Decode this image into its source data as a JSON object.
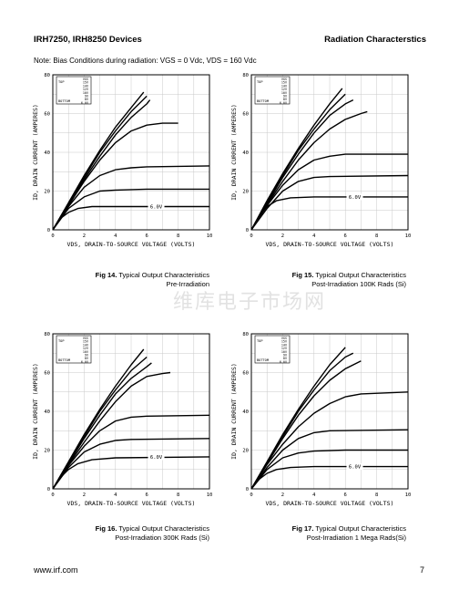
{
  "header": {
    "left": "IRH7250, IRH8250 Devices",
    "right": "Radiation Characterstics"
  },
  "note": "Note: Bias Conditions during radiation: VGS = 0 Vdc, VDS = 160 Vdc",
  "watermark": "维库电子市场网",
  "footer": {
    "url": "www.irf.com",
    "page": "7"
  },
  "charts": [
    {
      "fig": "Fig 14.",
      "caption_line1": "Typical Output Characteristics",
      "caption_line2": "Pre-Irradiation",
      "ylabel": "ID, DRAIN CURRENT (AMPERES)",
      "xlabel": "VDS, DRAIN-TO-SOURCE VOLTAGE (VOLTS)",
      "legend_top": "TOP",
      "legend_bottom": "BOTTOM",
      "legend_values": [
        "VGS",
        "15V",
        "14V",
        "12V",
        "10V",
        "9V",
        "8V",
        "6.0V"
      ],
      "curve_label": "6.0V"
    },
    {
      "fig": "Fig 15.",
      "caption_line1": "Typical Output Characteristics",
      "caption_line2": "Post-Irradiation 100K Rads (Si)",
      "ylabel": "ID, DRAIN CURRENT (AMPERES)",
      "xlabel": "VDS, DRAIN-TO-SOURCE VOLTAGE (VOLTS)",
      "legend_top": "TOP",
      "legend_bottom": "BOTTOM",
      "legend_values": [
        "VGS",
        "15V",
        "14V",
        "12V",
        "10V",
        "9V",
        "8V",
        "6.0V"
      ],
      "curve_label": "6.0V"
    },
    {
      "fig": "Fig 16.",
      "caption_line1": "Typical Output Characteristics",
      "caption_line2": "Post-Irradiation 300K Rads (Si)",
      "ylabel": "ID, DRAIN CURRENT (AMPERES)",
      "xlabel": "VDS, DRAIN-TO-SOURCE VOLTAGE (VOLTS)",
      "legend_top": "TOP",
      "legend_bottom": "BOTTOM",
      "legend_values": [
        "VGS",
        "15V",
        "14V",
        "12V",
        "10V",
        "9V",
        "8V",
        "6.0V"
      ],
      "curve_label": "6.0V"
    },
    {
      "fig": "Fig 17.",
      "caption_line1": "Typical Output Characteristics",
      "caption_line2": "Post-Irradiation 1 Mega Rads(Si)",
      "ylabel": "ID, DRAIN CURRENT (AMPERES)",
      "xlabel": "VDS, DRAIN-TO-SOURCE VOLTAGE (VOLTS)",
      "legend_top": "TOP",
      "legend_bottom": "BOTTOM",
      "legend_values": [
        "VGS",
        "15V",
        "14V",
        "12V",
        "10V",
        "9V",
        "8V",
        "6.0V"
      ],
      "curve_label": "6.0V"
    }
  ],
  "chart_data": [
    {
      "type": "line",
      "x_ticks": [
        "0",
        "2",
        "4",
        "6",
        "8",
        "10"
      ],
      "y_ticks": [
        "0",
        "20",
        "40",
        "60",
        "80"
      ],
      "xlim": [
        0,
        10
      ],
      "ylim": [
        0,
        80
      ],
      "series": [
        {
          "name": "15V",
          "points": [
            [
              0,
              0
            ],
            [
              1,
              14
            ],
            [
              2,
              28
            ],
            [
              3,
              41
            ],
            [
              4,
              53
            ],
            [
              5,
              63
            ],
            [
              5.8,
              71
            ]
          ]
        },
        {
          "name": "14V",
          "points": [
            [
              0,
              0
            ],
            [
              1,
              13.5
            ],
            [
              2,
              27
            ],
            [
              3,
              40
            ],
            [
              4,
              51
            ],
            [
              5,
              61
            ],
            [
              6,
              69
            ]
          ]
        },
        {
          "name": "12V",
          "points": [
            [
              0,
              0
            ],
            [
              1,
              13
            ],
            [
              2,
              26
            ],
            [
              3,
              38
            ],
            [
              4,
              49
            ],
            [
              5,
              58
            ],
            [
              6,
              65
            ],
            [
              6.2,
              67
            ]
          ]
        },
        {
          "name": "10V",
          "points": [
            [
              0,
              0
            ],
            [
              1,
              12.5
            ],
            [
              2,
              25
            ],
            [
              3,
              36
            ],
            [
              4,
              45
            ],
            [
              5,
              51
            ],
            [
              6,
              54
            ],
            [
              7,
              55
            ],
            [
              8,
              55
            ]
          ]
        },
        {
          "name": "9V",
          "points": [
            [
              0,
              0
            ],
            [
              1,
              12
            ],
            [
              2,
              22
            ],
            [
              3,
              28
            ],
            [
              4,
              31
            ],
            [
              5,
              32
            ],
            [
              6,
              32.5
            ],
            [
              10,
              33
            ]
          ]
        },
        {
          "name": "8V",
          "points": [
            [
              0,
              0
            ],
            [
              1,
              11
            ],
            [
              2,
              17
            ],
            [
              3,
              20
            ],
            [
              4,
              20.5
            ],
            [
              6,
              21
            ],
            [
              10,
              21
            ]
          ]
        },
        {
          "name": "6.0V",
          "points": [
            [
              0,
              0
            ],
            [
              0.5,
              6
            ],
            [
              1,
              9
            ],
            [
              1.6,
              11
            ],
            [
              2.5,
              12
            ],
            [
              4,
              12
            ],
            [
              10,
              12
            ]
          ]
        }
      ]
    },
    {
      "type": "line",
      "x_ticks": [
        "0",
        "2",
        "4",
        "6",
        "8",
        "10"
      ],
      "y_ticks": [
        "0",
        "20",
        "40",
        "60",
        "80"
      ],
      "xlim": [
        0,
        10
      ],
      "ylim": [
        0,
        80
      ],
      "series": [
        {
          "name": "15V",
          "points": [
            [
              0,
              0
            ],
            [
              1,
              15
            ],
            [
              2,
              29
            ],
            [
              3,
              42
            ],
            [
              4,
              54
            ],
            [
              5,
              65
            ],
            [
              5.8,
              73
            ]
          ]
        },
        {
          "name": "14V",
          "points": [
            [
              0,
              0
            ],
            [
              1,
              14
            ],
            [
              2,
              28
            ],
            [
              3,
              41
            ],
            [
              4,
              52
            ],
            [
              5,
              62
            ],
            [
              6,
              70
            ]
          ]
        },
        {
          "name": "12V",
          "points": [
            [
              0,
              0
            ],
            [
              1,
              13.5
            ],
            [
              2,
              27
            ],
            [
              3,
              39
            ],
            [
              4,
              50
            ],
            [
              5,
              59
            ],
            [
              6,
              65
            ],
            [
              6.5,
              67
            ]
          ]
        },
        {
          "name": "10V",
          "points": [
            [
              0,
              0
            ],
            [
              1,
              13
            ],
            [
              2,
              25
            ],
            [
              3,
              36
            ],
            [
              4,
              45
            ],
            [
              5,
              52
            ],
            [
              6,
              57
            ],
            [
              7,
              60
            ],
            [
              7.4,
              61
            ]
          ]
        },
        {
          "name": "9V",
          "points": [
            [
              0,
              0
            ],
            [
              1,
              12.5
            ],
            [
              2,
              23
            ],
            [
              3,
              31
            ],
            [
              4,
              36
            ],
            [
              5,
              38
            ],
            [
              6,
              39
            ],
            [
              10,
              39
            ]
          ]
        },
        {
          "name": "8V",
          "points": [
            [
              0,
              0
            ],
            [
              1,
              11
            ],
            [
              2,
              20
            ],
            [
              3,
              25
            ],
            [
              4,
              27
            ],
            [
              5,
              27.5
            ],
            [
              10,
              28
            ]
          ]
        },
        {
          "name": "6.0V",
          "points": [
            [
              0,
              0
            ],
            [
              0.5,
              7
            ],
            [
              1,
              12
            ],
            [
              1.6,
              15
            ],
            [
              2.5,
              16.5
            ],
            [
              4,
              17
            ],
            [
              10,
              17
            ]
          ]
        }
      ]
    },
    {
      "type": "line",
      "x_ticks": [
        "0",
        "2",
        "4",
        "6",
        "8",
        "10"
      ],
      "y_ticks": [
        "0",
        "20",
        "40",
        "60",
        "80"
      ],
      "xlim": [
        0,
        10
      ],
      "ylim": [
        0,
        80
      ],
      "series": [
        {
          "name": "15V",
          "points": [
            [
              0,
              0
            ],
            [
              1,
              14
            ],
            [
              2,
              28
            ],
            [
              3,
              41
            ],
            [
              4,
              53
            ],
            [
              5,
              64
            ],
            [
              5.8,
              72
            ]
          ]
        },
        {
          "name": "14V",
          "points": [
            [
              0,
              0
            ],
            [
              1,
              13.5
            ],
            [
              2,
              27
            ],
            [
              3,
              40
            ],
            [
              4,
              51
            ],
            [
              5,
              61
            ],
            [
              6,
              68
            ]
          ]
        },
        {
          "name": "12V",
          "points": [
            [
              0,
              0
            ],
            [
              1,
              13
            ],
            [
              2,
              26
            ],
            [
              3,
              38
            ],
            [
              4,
              49
            ],
            [
              5,
              57
            ],
            [
              6,
              63
            ],
            [
              6.3,
              65
            ]
          ]
        },
        {
          "name": "10V",
          "points": [
            [
              0,
              0
            ],
            [
              1,
              12.5
            ],
            [
              2,
              24
            ],
            [
              3,
              35
            ],
            [
              4,
              45
            ],
            [
              5,
              53
            ],
            [
              6,
              58
            ],
            [
              7,
              59.5
            ],
            [
              7.5,
              60
            ]
          ]
        },
        {
          "name": "9V",
          "points": [
            [
              0,
              0
            ],
            [
              1,
              12
            ],
            [
              2,
              22
            ],
            [
              3,
              30
            ],
            [
              4,
              35
            ],
            [
              5,
              37
            ],
            [
              6,
              37.5
            ],
            [
              10,
              38
            ]
          ]
        },
        {
          "name": "8V",
          "points": [
            [
              0,
              0
            ],
            [
              1,
              11
            ],
            [
              2,
              19
            ],
            [
              3,
              23
            ],
            [
              4,
              25
            ],
            [
              5,
              25.5
            ],
            [
              10,
              26
            ]
          ]
        },
        {
          "name": "6.0V",
          "points": [
            [
              0,
              0
            ],
            [
              0.5,
              6
            ],
            [
              1,
              10
            ],
            [
              1.6,
              13
            ],
            [
              2.5,
              15
            ],
            [
              4,
              16
            ],
            [
              10,
              16.5
            ]
          ]
        }
      ]
    },
    {
      "type": "line",
      "x_ticks": [
        "0",
        "2",
        "4",
        "6",
        "8",
        "10"
      ],
      "y_ticks": [
        "0",
        "20",
        "40",
        "60",
        "80"
      ],
      "xlim": [
        0,
        10
      ],
      "ylim": [
        0,
        80
      ],
      "series": [
        {
          "name": "15V",
          "points": [
            [
              0,
              0
            ],
            [
              1,
              14
            ],
            [
              2,
              28
            ],
            [
              3,
              41
            ],
            [
              4,
              53
            ],
            [
              5,
              64
            ],
            [
              6,
              73
            ]
          ]
        },
        {
          "name": "14V",
          "points": [
            [
              0,
              0
            ],
            [
              1,
              13.5
            ],
            [
              2,
              27
            ],
            [
              3,
              40
            ],
            [
              4,
              51
            ],
            [
              5,
              61
            ],
            [
              6,
              68
            ],
            [
              6.5,
              70
            ]
          ]
        },
        {
          "name": "12V",
          "points": [
            [
              0,
              0
            ],
            [
              1,
              13
            ],
            [
              2,
              26
            ],
            [
              3,
              38
            ],
            [
              4,
              48
            ],
            [
              5,
              56
            ],
            [
              6,
              62
            ],
            [
              7,
              66
            ]
          ]
        },
        {
          "name": "10V",
          "points": [
            [
              0,
              0
            ],
            [
              1,
              12.5
            ],
            [
              2,
              23
            ],
            [
              3,
              32
            ],
            [
              4,
              39
            ],
            [
              5,
              44
            ],
            [
              6,
              47.5
            ],
            [
              7,
              49
            ],
            [
              10,
              50
            ]
          ]
        },
        {
          "name": "9V",
          "points": [
            [
              0,
              0
            ],
            [
              1,
              11
            ],
            [
              2,
              20
            ],
            [
              3,
              26
            ],
            [
              4,
              29
            ],
            [
              5,
              30
            ],
            [
              10,
              30.5
            ]
          ]
        },
        {
          "name": "8V",
          "points": [
            [
              0,
              0
            ],
            [
              1,
              10
            ],
            [
              2,
              16
            ],
            [
              3,
              18.5
            ],
            [
              4,
              19.5
            ],
            [
              6,
              20
            ],
            [
              10,
              20
            ]
          ]
        },
        {
          "name": "6.0V",
          "points": [
            [
              0,
              0
            ],
            [
              0.5,
              5
            ],
            [
              1,
              8
            ],
            [
              1.6,
              10
            ],
            [
              2.5,
              11
            ],
            [
              4,
              11.5
            ],
            [
              10,
              11.5
            ]
          ]
        }
      ]
    }
  ]
}
